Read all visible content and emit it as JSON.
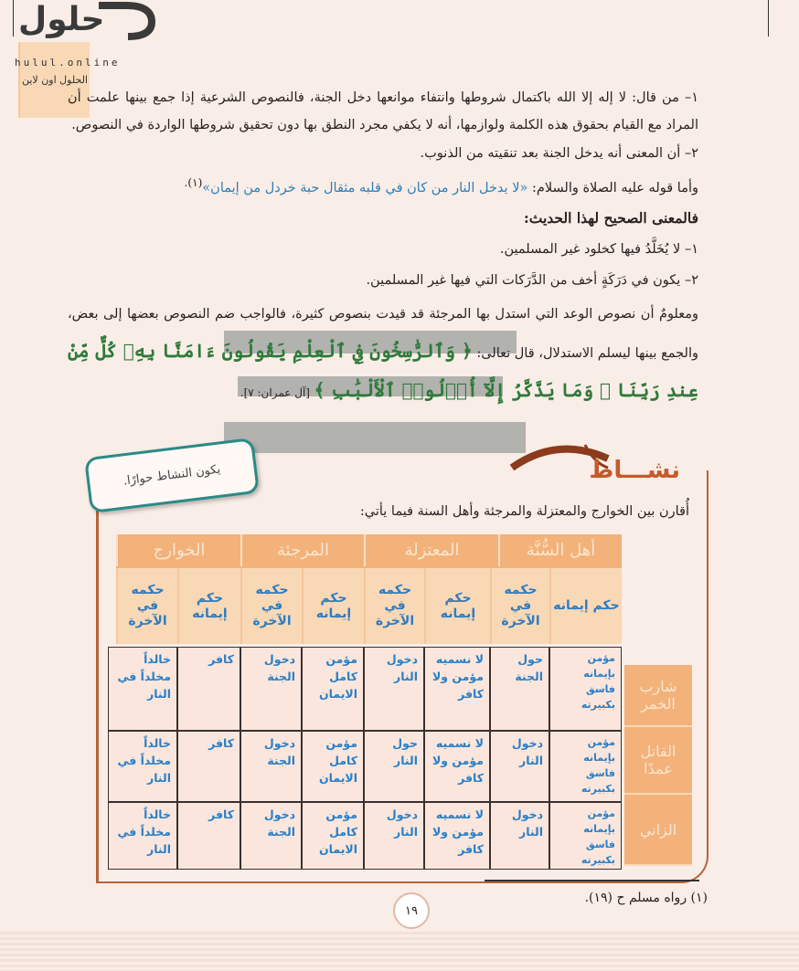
{
  "logo": {
    "brand": "حلول",
    "subtitle": "الحلول اون لاين",
    "domain": "hulul.online"
  },
  "body": {
    "p1": "١– من قال: لا إله إلا الله باكتمال شروطها وانتفاء موانعها دخل الجنة، فالنصوص الشرعية إذا جمع بينها علمت أن المراد مع القيام بحقوق هذه الكلمة ولوازمها، أنه لا يكفي مجرد النطق بها دون تحقيق شروطها الواردة في النصوص.",
    "p2": "٢– أن المعنى أنه يدخل الجنة بعد تنقيته من الذنوب.",
    "p3_intro": "وأما قوله عليه الصلاة والسلام: ",
    "p3_hadith": "«لا يدخل النار من كان في قلبه مثقال حبة خردل من إيمان»",
    "p3_ref": "(١).",
    "heading": "فالمعنى الصحيح لهذا الحديث:",
    "m1": "١– لا يُخَلَّدُ فيها كخلود غير المسلمين.",
    "m2": "٢– يكون في دَرَكَةٍ أخف من الدَّرَكات التي فيها غير المسلمين.",
    "p4": "ومعلومٌ أن نصوص الوعد التي استدل بها المرجئة قد قيدت بنصوص كثيرة، فالواجب ضم النصوص بعضها إلى بعض، والجمع بينها ليسلم الاستدلال، قال تعالى: ",
    "verse": "﴿ وَٱلرَّٰسِخُونَ فِي ٱلْعِلْمِ يَقُولُونَ ءَامَنَّا بِهِۦ كُلٌّ مِّنْ عِندِ رَبِّنَا ۗ وَمَا يَذَّكَّرُ إِلَّآ أُو۟لُوا۟ ٱلْأَلْبَٰبِ ﴾",
    "verse_ref": "[آل عمران: ٧]."
  },
  "activity": {
    "title": "نشـــاط",
    "note": "يكون النشاط حوارًا.",
    "instruction": "أُقارن بين الخوارج والمعتزلة والمرجئة وأهل السنة فيما يأتي:",
    "groups": [
      "أهل السُّنَّة",
      "المعتزلة",
      "المرجئة",
      "الخوارج"
    ],
    "subheaders": [
      "حكم إيمانه",
      "حكمه في الآخرة",
      "حكم إيمانه",
      "حكمه في الآخرة",
      "حكم إيمانه",
      "حكمه في الآخرة",
      "حكم إيمانه",
      "حكمه في الآخرة"
    ],
    "rows": [
      {
        "label": "شارب الخمر",
        "cells": [
          "مؤمن بإيمانه فاسق بكبيرته",
          "حول الجنة",
          "لا نسميه مؤمن ولا كافر",
          "دخول النار",
          "مؤمن كامل الايمان",
          "دخول الجنة",
          "كافر",
          "خالداً مخلداً في النار"
        ]
      },
      {
        "label": "القاتل عمدًا",
        "cells": [
          "مؤمن بإيمانه فاسق بكبيرته",
          "دخول النار",
          "لا نسميه مؤمن ولا كافر",
          "حول النار",
          "مؤمن كامل الايمان",
          "دخول الجنة",
          "كافر",
          "خالداً مخلداً في النار"
        ]
      },
      {
        "label": "الزاني",
        "cells": [
          "مؤمن بإيمانه فاسق بكبيرته",
          "دخول النار",
          "لا نسميه مؤمن ولا كافر",
          "دخول النار",
          "مؤمن كامل الايمان",
          "دخول الجنة",
          "كافر",
          "خالداً مخلداً في النار"
        ]
      }
    ]
  },
  "footnote": "(١) رواه مسلم ح (١٩).",
  "page_number": "١٩",
  "colors": {
    "accent": "#c65a2b",
    "table_header": "#f2b27a",
    "answer_text": "#2a7fc8",
    "verse": "#2f7a3a",
    "hadith": "#2d7fb8",
    "note_border": "#2b8a86"
  }
}
